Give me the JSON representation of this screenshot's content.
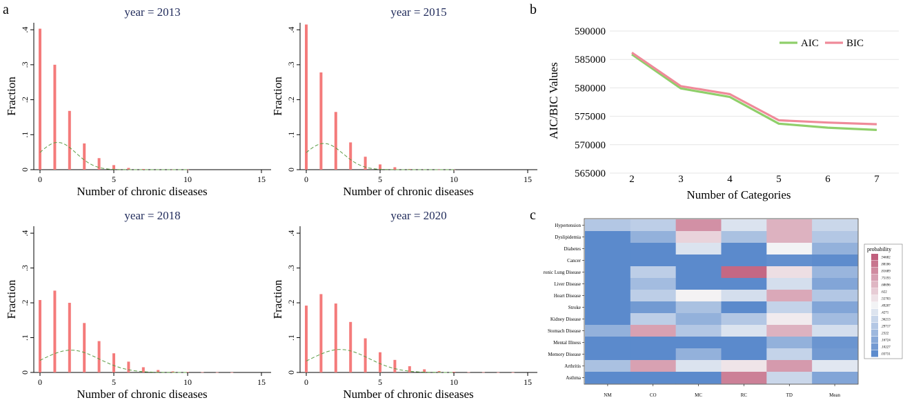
{
  "panel_letters": {
    "a": "a",
    "b": "b",
    "c": "c"
  },
  "chart_data": [
    {
      "type": "bar",
      "id": "hist-2013",
      "title": "year = 2013",
      "xlabel": "Number of chronic diseases",
      "ylabel": "Fraction",
      "xlim": [
        -0.5,
        15
      ],
      "ylim": [
        0,
        0.42
      ],
      "xticks": [
        0,
        5,
        10,
        15
      ],
      "xtick_labels": [
        "0",
        "5",
        "10",
        "15"
      ],
      "yticks": [
        0,
        0.1,
        0.2,
        0.3,
        0.4
      ],
      "ytick_labels": [
        "0",
        ".1",
        ".2",
        ".3",
        ".4"
      ],
      "x": [
        0,
        1,
        2,
        3,
        4,
        5,
        6,
        7,
        8,
        9,
        10
      ],
      "values": [
        0.403,
        0.3,
        0.168,
        0.075,
        0.033,
        0.013,
        0.005,
        0.002,
        0.001,
        0.0005,
        0.0003
      ],
      "normal_curve": {
        "mean": 1.2,
        "sd": 1.25,
        "peak": 0.078
      }
    },
    {
      "type": "bar",
      "id": "hist-2015",
      "title": "year = 2015",
      "xlabel": "Number of chronic diseases",
      "ylabel": "Fraction",
      "xlim": [
        -0.5,
        15
      ],
      "ylim": [
        0,
        0.42
      ],
      "xticks": [
        0,
        5,
        10,
        15
      ],
      "xtick_labels": [
        "0",
        "5",
        "10",
        "15"
      ],
      "yticks": [
        0,
        0.1,
        0.2,
        0.3,
        0.4
      ],
      "ytick_labels": [
        "0",
        ".1",
        ".2",
        ".3",
        ".4"
      ],
      "x": [
        0,
        1,
        2,
        3,
        4,
        5,
        6,
        7,
        8,
        9,
        10
      ],
      "values": [
        0.415,
        0.278,
        0.165,
        0.078,
        0.037,
        0.015,
        0.007,
        0.002,
        0.001,
        0.0005,
        0.0003
      ],
      "normal_curve": {
        "mean": 1.2,
        "sd": 1.3,
        "peak": 0.075
      }
    },
    {
      "type": "bar",
      "id": "hist-2018",
      "title": "year = 2018",
      "xlabel": "Number of chronic diseases",
      "ylabel": "Fraction",
      "xlim": [
        -0.5,
        15
      ],
      "ylim": [
        0,
        0.42
      ],
      "xticks": [
        0,
        5,
        10,
        15
      ],
      "xtick_labels": [
        "0",
        "5",
        "10",
        "15"
      ],
      "yticks": [
        0,
        0.1,
        0.2,
        0.3,
        0.4
      ],
      "ytick_labels": [
        "0",
        ".1",
        ".2",
        ".3",
        ".4"
      ],
      "x": [
        0,
        1,
        2,
        3,
        4,
        5,
        6,
        7,
        8,
        9,
        10,
        11,
        12,
        13
      ],
      "values": [
        0.208,
        0.235,
        0.2,
        0.142,
        0.09,
        0.055,
        0.031,
        0.015,
        0.007,
        0.003,
        0.0015,
        0.0008,
        0.0005,
        0.0003
      ],
      "normal_curve": {
        "mean": 2.1,
        "sd": 1.9,
        "peak": 0.064
      }
    },
    {
      "type": "bar",
      "id": "hist-2020",
      "title": "year = 2020",
      "xlabel": "Number of chronic diseases",
      "ylabel": "Fraction",
      "xlim": [
        -0.5,
        15
      ],
      "ylim": [
        0,
        0.42
      ],
      "xticks": [
        0,
        5,
        10,
        15
      ],
      "xtick_labels": [
        "0",
        "5",
        "10",
        "15"
      ],
      "yticks": [
        0,
        0.1,
        0.2,
        0.3,
        0.4
      ],
      "ytick_labels": [
        "0",
        ".1",
        ".2",
        ".3",
        ".4"
      ],
      "x": [
        0,
        1,
        2,
        3,
        4,
        5,
        6,
        7,
        8,
        9,
        10,
        11,
        12,
        13,
        14
      ],
      "values": [
        0.192,
        0.225,
        0.198,
        0.145,
        0.098,
        0.058,
        0.036,
        0.018,
        0.009,
        0.004,
        0.002,
        0.001,
        0.0007,
        0.0004,
        0.0003
      ],
      "normal_curve": {
        "mean": 2.3,
        "sd": 1.95,
        "peak": 0.066
      }
    },
    {
      "type": "line",
      "id": "aic-bic",
      "xlabel": "Number of Categories",
      "ylabel": "AIC/BIC Values",
      "x": [
        2,
        3,
        4,
        5,
        6,
        7
      ],
      "xlim": [
        1.55,
        7.45
      ],
      "ylim": [
        565000,
        590000
      ],
      "yticks": [
        565000,
        570000,
        575000,
        580000,
        585000,
        590000
      ],
      "ytick_labels": [
        "565000",
        "570000",
        "575000",
        "580000",
        "585000",
        "590000"
      ],
      "xtick_labels": [
        "2",
        "3",
        "4",
        "5",
        "6",
        "7"
      ],
      "series": [
        {
          "name": "AIC",
          "color": "#8fcf6a",
          "values": [
            585900,
            579900,
            578400,
            573700,
            573000,
            572600
          ]
        },
        {
          "name": "BIC",
          "color": "#ef8a99",
          "values": [
            586200,
            580300,
            578900,
            574300,
            573900,
            573600
          ]
        }
      ],
      "legend": "top-right"
    },
    {
      "type": "heatmap",
      "id": "probability-heatmap",
      "rows": [
        "Hypertension",
        "Dyslipidemia",
        "Diabetes",
        "Cancer",
        "ronic Lung Disease",
        "Liver Disease",
        "Heart Disease",
        "Stroke",
        "Kidney Disease",
        "Stomach Disease",
        "Mental Illness",
        "Memory Disease",
        "Arthritis",
        "Asthma"
      ],
      "columns": [
        "NM",
        "CO",
        "MC",
        "RC",
        "TD",
        "Mean"
      ],
      "values": [
        [
          0.3,
          0.33,
          0.8,
          0.42,
          0.7,
          0.37
        ],
        [
          0.03,
          0.2,
          0.6,
          0.27,
          0.7,
          0.3
        ],
        [
          0.03,
          0.03,
          0.42,
          0.03,
          0.49,
          0.2
        ],
        [
          0.03,
          0.03,
          0.03,
          0.03,
          0.05,
          0.04
        ],
        [
          0.03,
          0.33,
          0.03,
          0.92,
          0.57,
          0.22
        ],
        [
          0.03,
          0.25,
          0.03,
          0.03,
          0.4,
          0.15
        ],
        [
          0.03,
          0.33,
          0.51,
          0.4,
          0.73,
          0.3
        ],
        [
          0.03,
          0.1,
          0.27,
          0.03,
          0.35,
          0.15
        ],
        [
          0.03,
          0.33,
          0.2,
          0.3,
          0.53,
          0.25
        ],
        [
          0.2,
          0.75,
          0.3,
          0.42,
          0.7,
          0.4
        ],
        [
          0.03,
          0.03,
          0.03,
          0.03,
          0.2,
          0.08
        ],
        [
          0.03,
          0.03,
          0.2,
          0.03,
          0.35,
          0.1
        ],
        [
          0.27,
          0.75,
          0.42,
          0.55,
          0.77,
          0.44
        ],
        [
          0.03,
          0.03,
          0.03,
          0.85,
          0.37,
          0.15
        ]
      ],
      "colorbar": {
        "title": "probability",
        "labels": [
          ".94682",
          ".88186",
          ".81689",
          ".75193",
          ".68696",
          ".622",
          ".55703",
          ".49207",
          ".4271",
          ".36213",
          ".29717",
          ".2322",
          ".16724",
          ".10227",
          ".03731"
        ]
      }
    }
  ]
}
